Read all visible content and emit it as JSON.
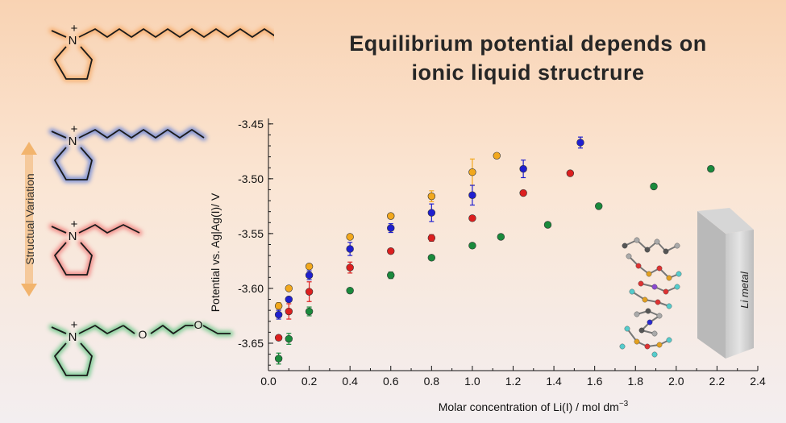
{
  "title": {
    "line1": "Equilibrium potential depends on",
    "line2": "ionic liquid structrure"
  },
  "side_label": "Structual Variation",
  "molecules": [
    {
      "name": "decyl-pyrrolidinium",
      "glow": "#f5a35a",
      "atom_label": "N",
      "charge": "+"
    },
    {
      "name": "hexyl-pyrrolidinium",
      "glow": "#4f73d8",
      "atom_label": "N",
      "charge": "+"
    },
    {
      "name": "propyl-pyrrolidinium",
      "glow": "#ef6a6a",
      "atom_label": "N",
      "charge": "+"
    },
    {
      "name": "methoxyethoxyethyl-pyrrolidinium",
      "glow": "#4fbf74",
      "atom_label": "N",
      "charge": "+"
    }
  ],
  "inset": {
    "label": "Li metal"
  },
  "chart_data": {
    "type": "scatter",
    "xlabel": "Molar concentration of Li(I) / mol dm",
    "xlabel_sup": "−3",
    "ylabel": "Potential  vs. Ag|Ag(I)/ V",
    "xlim": [
      0.0,
      2.4
    ],
    "ylim": [
      -3.675,
      -3.445
    ],
    "xticks": [
      "0.0",
      "0.2",
      "0.4",
      "0.6",
      "0.8",
      "1.0",
      "1.2",
      "1.4",
      "1.6",
      "1.8",
      "2.0",
      "2.2",
      "2.4"
    ],
    "yticks": [
      "-3.45",
      "-3.50",
      "-3.55",
      "-3.60",
      "-3.65"
    ],
    "series": [
      {
        "color": "#f2a81d",
        "points": [
          {
            "x": 0.05,
            "y": -3.616,
            "err": 0.003
          },
          {
            "x": 0.1,
            "y": -3.6,
            "err": 0
          },
          {
            "x": 0.2,
            "y": -3.58,
            "err": 0
          },
          {
            "x": 0.4,
            "y": -3.553,
            "err": 0
          },
          {
            "x": 0.6,
            "y": -3.534,
            "err": 0
          },
          {
            "x": 0.8,
            "y": -3.516,
            "err": 0.005
          },
          {
            "x": 1.0,
            "y": -3.494,
            "err": 0.012
          },
          {
            "x": 1.12,
            "y": -3.479,
            "err": 0
          }
        ]
      },
      {
        "color": "#1f1fcf",
        "points": [
          {
            "x": 0.05,
            "y": -3.624,
            "err": 0.004
          },
          {
            "x": 0.1,
            "y": -3.61,
            "err": 0
          },
          {
            "x": 0.2,
            "y": -3.588,
            "err": 0.004
          },
          {
            "x": 0.4,
            "y": -3.564,
            "err": 0.006
          },
          {
            "x": 0.6,
            "y": -3.545,
            "err": 0.004
          },
          {
            "x": 0.8,
            "y": -3.531,
            "err": 0.008
          },
          {
            "x": 1.0,
            "y": -3.515,
            "err": 0.009
          },
          {
            "x": 1.25,
            "y": -3.491,
            "err": 0.008
          },
          {
            "x": 1.53,
            "y": -3.467,
            "err": 0.005
          }
        ]
      },
      {
        "color": "#dc1f1f",
        "points": [
          {
            "x": 0.05,
            "y": -3.645,
            "err": 0
          },
          {
            "x": 0.1,
            "y": -3.621,
            "err": 0.007
          },
          {
            "x": 0.2,
            "y": -3.603,
            "err": 0.009
          },
          {
            "x": 0.4,
            "y": -3.581,
            "err": 0.005
          },
          {
            "x": 0.6,
            "y": -3.566,
            "err": 0
          },
          {
            "x": 0.8,
            "y": -3.554,
            "err": 0.003
          },
          {
            "x": 1.0,
            "y": -3.536,
            "err": 0
          },
          {
            "x": 1.25,
            "y": -3.513,
            "err": 0
          },
          {
            "x": 1.48,
            "y": -3.495,
            "err": 0
          }
        ]
      },
      {
        "color": "#1a8a3c",
        "points": [
          {
            "x": 0.05,
            "y": -3.664,
            "err": 0.005
          },
          {
            "x": 0.1,
            "y": -3.646,
            "err": 0.005
          },
          {
            "x": 0.2,
            "y": -3.621,
            "err": 0.004
          },
          {
            "x": 0.4,
            "y": -3.602,
            "err": 0
          },
          {
            "x": 0.6,
            "y": -3.588,
            "err": 0.003
          },
          {
            "x": 0.8,
            "y": -3.572,
            "err": 0
          },
          {
            "x": 1.0,
            "y": -3.561,
            "err": 0
          },
          {
            "x": 1.14,
            "y": -3.553,
            "err": 0
          },
          {
            "x": 1.37,
            "y": -3.542,
            "err": 0
          },
          {
            "x": 1.62,
            "y": -3.525,
            "err": 0
          },
          {
            "x": 1.89,
            "y": -3.507,
            "err": 0
          },
          {
            "x": 2.17,
            "y": -3.491,
            "err": 0
          }
        ]
      }
    ]
  }
}
